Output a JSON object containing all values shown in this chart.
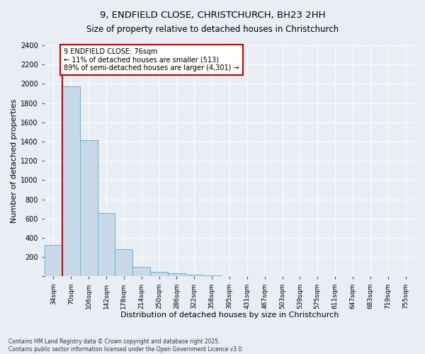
{
  "title": "9, ENDFIELD CLOSE, CHRISTCHURCH, BH23 2HH",
  "subtitle": "Size of property relative to detached houses in Christchurch",
  "xlabel": "Distribution of detached houses by size in Christchurch",
  "ylabel": "Number of detached properties",
  "categories": [
    "34sqm",
    "70sqm",
    "106sqm",
    "142sqm",
    "178sqm",
    "214sqm",
    "250sqm",
    "286sqm",
    "322sqm",
    "358sqm",
    "395sqm",
    "431sqm",
    "467sqm",
    "503sqm",
    "539sqm",
    "575sqm",
    "611sqm",
    "647sqm",
    "683sqm",
    "719sqm",
    "755sqm"
  ],
  "values": [
    325,
    1975,
    1415,
    655,
    285,
    100,
    45,
    35,
    20,
    10,
    0,
    0,
    0,
    0,
    0,
    0,
    0,
    0,
    0,
    0,
    0
  ],
  "bar_color": "#c8d9ea",
  "bar_edge_color": "#6aaed6",
  "highlight_color": "#cc0000",
  "annotation_text": "9 ENDFIELD CLOSE: 76sqm\n← 11% of detached houses are smaller (513)\n89% of semi-detached houses are larger (4,301) →",
  "annotation_box_color": "#ffffff",
  "annotation_box_edge": "#cc0000",
  "ylim": [
    0,
    2400
  ],
  "yticks": [
    0,
    200,
    400,
    600,
    800,
    1000,
    1200,
    1400,
    1600,
    1800,
    2000,
    2200,
    2400
  ],
  "footer_line1": "Contains HM Land Registry data © Crown copyright and database right 2025.",
  "footer_line2": "Contains public sector information licensed under the Open Government Licence v3.0.",
  "bg_color": "#e8eef4",
  "grid_color": "#ffffff"
}
